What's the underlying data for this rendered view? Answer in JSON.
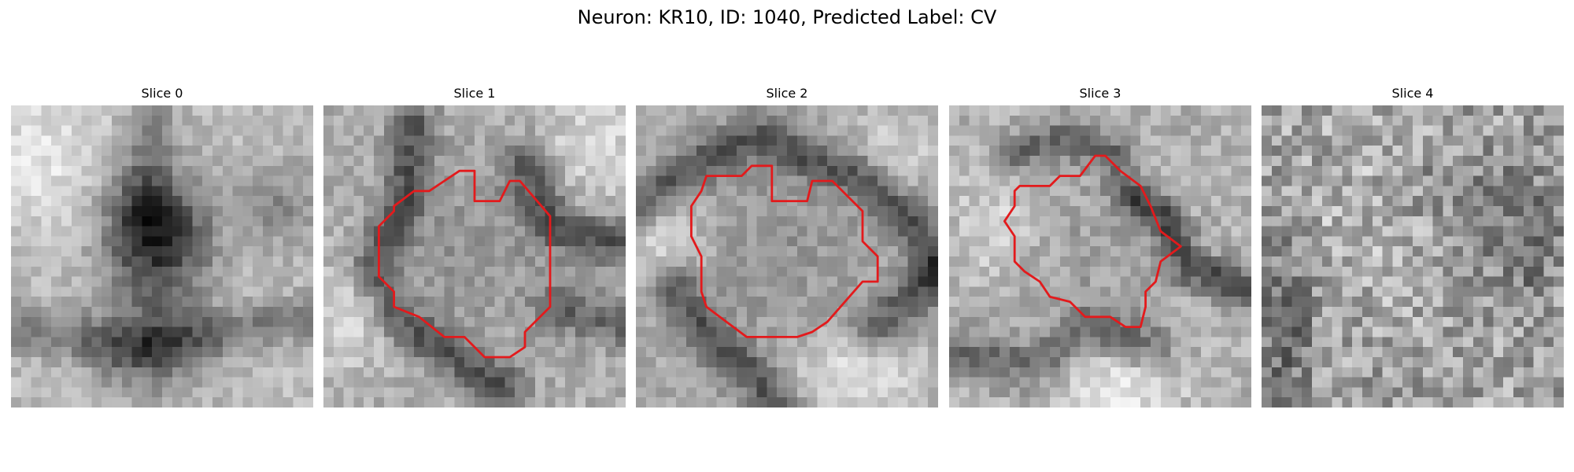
{
  "figure": {
    "title": "Neuron: KR10, ID: 1040, Predicted Label: CV"
  },
  "panels": [
    {
      "title": "Slice 0",
      "has_contour": false
    },
    {
      "title": "Slice 1",
      "has_contour": true
    },
    {
      "title": "Slice 2",
      "has_contour": true
    },
    {
      "title": "Slice 3",
      "has_contour": true
    },
    {
      "title": "Slice 4",
      "has_contour": false
    }
  ],
  "colors": {
    "contour": "#e31a1c",
    "background": "#ffffff"
  },
  "colormap": "gray"
}
